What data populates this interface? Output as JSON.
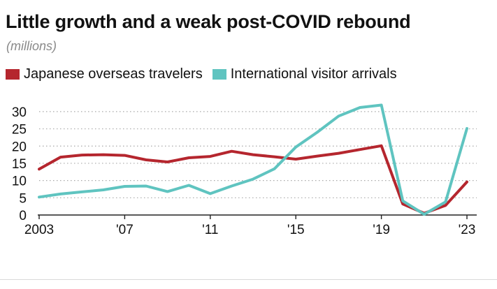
{
  "chart_data": {
    "type": "line",
    "title": "Little growth and a weak post-COVID rebound",
    "subtitle": "(millions)",
    "xlabel": "",
    "ylabel": "",
    "x": [
      2003,
      2004,
      2005,
      2006,
      2007,
      2008,
      2009,
      2010,
      2011,
      2012,
      2013,
      2014,
      2015,
      2016,
      2017,
      2018,
      2019,
      2020,
      2021,
      2022,
      2023
    ],
    "xlim": [
      2003,
      2023
    ],
    "ylim": [
      0,
      32
    ],
    "yticks": [
      0,
      5,
      10,
      15,
      20,
      25,
      30
    ],
    "ytick_labels": [
      "0",
      "5",
      "10",
      "15",
      "20",
      "25",
      "30"
    ],
    "xticks": [
      2003,
      2007,
      2011,
      2015,
      2019,
      2023
    ],
    "xtick_labels": [
      "2003",
      "'07",
      "'11",
      "'15",
      "'19",
      "'23"
    ],
    "grid": "horizontal dotted",
    "legend_position": "top-left",
    "series": [
      {
        "name": "Japanese overseas travelers",
        "color": "#b5262e",
        "values": [
          13.3,
          16.8,
          17.4,
          17.5,
          17.3,
          16.0,
          15.4,
          16.6,
          17.0,
          18.5,
          17.5,
          16.9,
          16.2,
          17.1,
          17.9,
          19.0,
          20.1,
          3.2,
          0.5,
          2.8,
          9.6
        ]
      },
      {
        "name": "International visitor arrivals",
        "color": "#5fc4c0",
        "values": [
          5.2,
          6.1,
          6.7,
          7.3,
          8.3,
          8.4,
          6.8,
          8.6,
          6.2,
          8.4,
          10.4,
          13.4,
          19.7,
          24.0,
          28.7,
          31.2,
          31.9,
          4.1,
          0.2,
          3.8,
          25.1
        ]
      }
    ]
  }
}
